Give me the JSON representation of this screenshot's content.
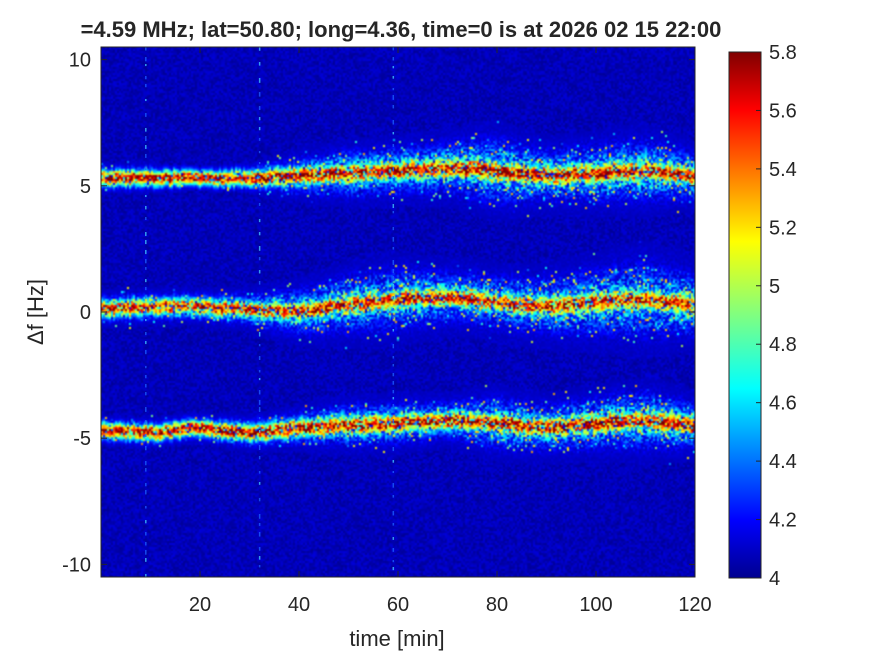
{
  "chart_data": {
    "type": "heatmap",
    "title": "=4.59 MHz;  lat=50.80; long=4.36, time=0 is at 2026 02 15 22:00",
    "xlabel": "time [min]",
    "ylabel": "Δf [Hz]",
    "xlim": [
      0,
      120
    ],
    "ylim": [
      -10.5,
      10.5
    ],
    "x_ticks": [
      20,
      40,
      60,
      80,
      100,
      120
    ],
    "y_ticks": [
      10,
      5,
      0,
      -5,
      -10
    ],
    "colorbar": {
      "colormap": "jet",
      "clim": [
        4,
        5.8
      ],
      "ticks": [
        5.8,
        5.6,
        5.4,
        5.2,
        5,
        4.8,
        4.6,
        4.4,
        4.2,
        4
      ],
      "tick_labels": [
        "5.8",
        "5.6",
        "5.4",
        "5.2",
        "5",
        "4.8",
        "4.6",
        "4.4",
        "4.2",
        "4"
      ]
    },
    "background_level": 4.1,
    "bands": [
      {
        "label": "upper",
        "time": [
          0,
          10,
          20,
          30,
          40,
          50,
          60,
          70,
          80,
          90,
          100,
          110,
          120
        ],
        "center_hz": [
          5.3,
          5.3,
          5.3,
          5.3,
          5.4,
          5.5,
          5.6,
          5.7,
          5.6,
          5.4,
          5.5,
          5.6,
          5.4
        ],
        "half_width_hz": [
          0.4,
          0.4,
          0.3,
          0.4,
          0.7,
          0.9,
          0.9,
          1.0,
          1.3,
          1.0,
          1.1,
          1.2,
          0.9
        ],
        "peak_level": 5.7
      },
      {
        "label": "center",
        "time": [
          0,
          10,
          20,
          30,
          40,
          50,
          60,
          70,
          80,
          90,
          100,
          110,
          120
        ],
        "center_hz": [
          0.1,
          0.2,
          0.2,
          0.1,
          0.0,
          0.3,
          0.5,
          0.6,
          0.4,
          0.2,
          0.4,
          0.5,
          0.3
        ],
        "half_width_hz": [
          0.5,
          0.5,
          0.5,
          0.6,
          0.9,
          1.1,
          1.2,
          1.0,
          1.0,
          1.1,
          1.3,
          1.5,
          1.2
        ],
        "peak_level": 5.6
      },
      {
        "label": "lower",
        "time": [
          0,
          10,
          20,
          30,
          40,
          50,
          60,
          70,
          80,
          90,
          100,
          110,
          120
        ],
        "center_hz": [
          -4.7,
          -4.8,
          -4.6,
          -4.8,
          -4.6,
          -4.5,
          -4.4,
          -4.3,
          -4.4,
          -4.6,
          -4.4,
          -4.3,
          -4.5
        ],
        "half_width_hz": [
          0.4,
          0.4,
          0.4,
          0.5,
          0.6,
          0.8,
          0.8,
          0.7,
          1.0,
          0.9,
          1.0,
          1.1,
          0.9
        ],
        "peak_level": 5.7
      }
    ],
    "vertical_streaks_min": [
      9,
      32,
      59
    ]
  }
}
